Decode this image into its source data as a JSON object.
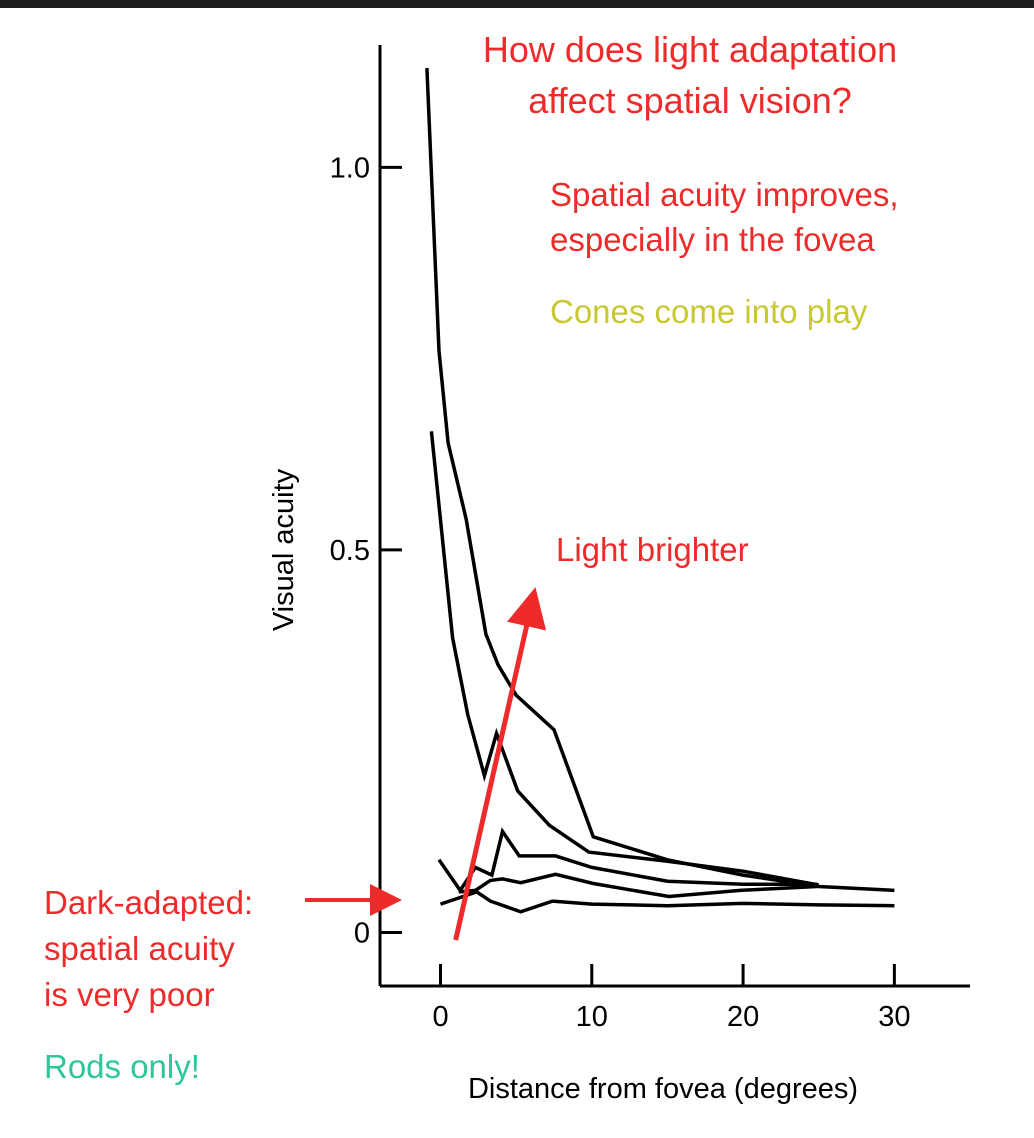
{
  "colors": {
    "red": "#ee2a2a",
    "yellow": "#c8c832",
    "teal": "#2cc79a",
    "black": "#000000"
  },
  "annotations": {
    "question": "How does light adaptation\naffect spatial vision?",
    "light_brighter": "Light brighter",
    "acuity_improves": "Spatial acuity improves,\nespecially in the fovea",
    "cones": "Cones come into play",
    "dark_adapted": "Dark-adapted:\nspatial acuity\nis very poor",
    "rods": "Rods only!"
  },
  "chart_data": {
    "type": "line",
    "xlabel": "Distance from fovea (degrees)",
    "ylabel": "Visual acuity",
    "xlim": [
      -4,
      35
    ],
    "ylim": [
      -0.07,
      1.16
    ],
    "x_ticks": [
      0,
      10,
      20,
      30
    ],
    "y_ticks": [
      0,
      0.5,
      1.0
    ],
    "x_tick_labels": [
      "0",
      "10",
      "20",
      "30"
    ],
    "y_tick_labels": [
      "0",
      "0.5",
      "1.0"
    ],
    "grid": false,
    "series": [
      {
        "x": [
          -0.9,
          -0.1,
          0.5,
          1.7,
          3.0,
          3.8,
          5.0,
          7.5,
          10.1,
          15.0,
          20.0,
          25.0,
          30.0
        ],
        "y": [
          1.13,
          0.76,
          0.64,
          0.54,
          0.39,
          0.35,
          0.31,
          0.265,
          0.125,
          0.095,
          0.075,
          0.06,
          0.055
        ]
      },
      {
        "x": [
          -0.6,
          0.8,
          1.8,
          2.9,
          3.7,
          5.1,
          7.2,
          9.8,
          15.0,
          20.0,
          25.0
        ],
        "y": [
          0.655,
          0.385,
          0.285,
          0.205,
          0.26,
          0.185,
          0.14,
          0.105,
          0.093,
          0.08,
          0.062
        ]
      },
      {
        "x": [
          -0.1,
          1.3,
          2.3,
          3.4,
          4.1,
          5.2,
          7.6,
          10.0,
          15.0,
          20.0,
          24.9
        ],
        "y": [
          0.095,
          0.055,
          0.085,
          0.075,
          0.132,
          0.1,
          0.1,
          0.085,
          0.067,
          0.063,
          0.063
        ]
      },
      {
        "x": [
          1.2,
          2.3,
          3.3,
          4.1,
          5.3,
          7.6,
          10.1,
          15.1,
          19.8,
          24.9
        ],
        "y": [
          0.053,
          0.055,
          0.068,
          0.07,
          0.065,
          0.076,
          0.064,
          0.047,
          0.055,
          0.06
        ]
      },
      {
        "x": [
          0.0,
          2.4,
          3.3,
          5.3,
          7.4,
          10.0,
          15.0,
          20.0,
          25.0,
          30.0
        ],
        "y": [
          0.037,
          0.053,
          0.041,
          0.027,
          0.041,
          0.037,
          0.035,
          0.038,
          0.036,
          0.035
        ]
      }
    ],
    "arrows": [
      {
        "name": "light-brighter-arrow",
        "color": "red",
        "from": [
          1.0,
          -0.01
        ],
        "to": [
          6.2,
          0.445
        ]
      }
    ]
  }
}
